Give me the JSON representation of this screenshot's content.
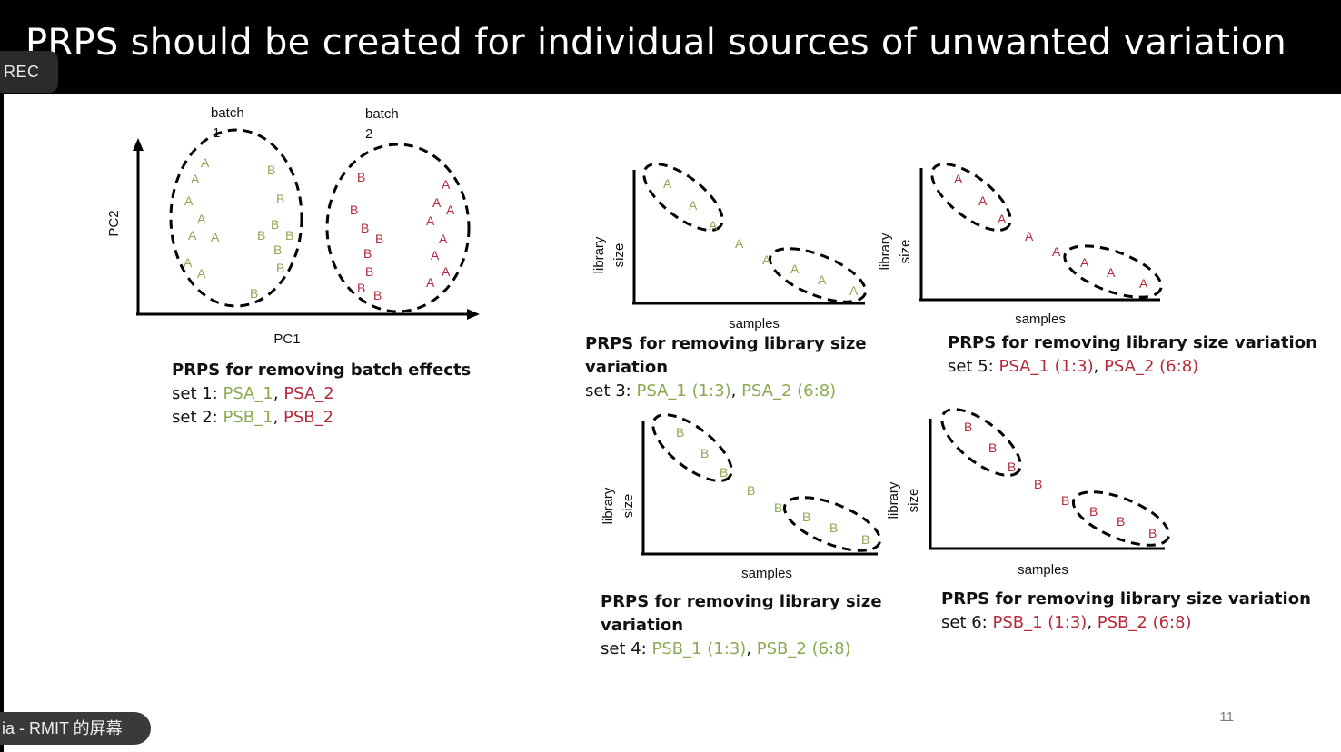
{
  "window": {
    "title": "PRPS should be created for individual sources of unwanted variation",
    "rec_label": "REC",
    "screen_share_label": "ia - RMIT 的屏幕"
  },
  "slide": {
    "page_number": "11"
  },
  "colors": {
    "green": "#8aaa52",
    "red": "#b52a3a",
    "text": "#111111"
  },
  "panel_batch": {
    "batch1_line1": "batch",
    "batch1_line2": "1",
    "batch2_line1": "batch",
    "batch2_line2": "2",
    "ylabel": "PC2",
    "xlabel": "PC1",
    "caption_head": "PRPS for removing batch effects",
    "set1_prefix": "set 1: ",
    "set1_a": "PSA_1",
    "set1_sep": ", ",
    "set1_b": "PSA_2",
    "set2_prefix": "set 2: ",
    "set2_a": "PSB_1",
    "set2_sep": ", ",
    "set2_b": "PSB_2"
  },
  "panel_set3": {
    "ylabel_1": "library",
    "ylabel_2": "size",
    "xlabel": "samples",
    "letter": "A",
    "caption_head_1": "PRPS for removing library size",
    "caption_head_2": "variation",
    "set_prefix": "set 3: ",
    "set_a": "PSA_1 (1:3)",
    "set_sep": ", ",
    "set_b": "PSA_2 (6:8)"
  },
  "panel_set5": {
    "ylabel_1": "library",
    "ylabel_2": "size",
    "xlabel": "samples",
    "letter": "A",
    "caption_head": "PRPS for removing library size variation",
    "set_prefix": "set 5: ",
    "set_a": "PSA_1 (1:3)",
    "set_sep": ", ",
    "set_b": "PSA_2 (6:8)"
  },
  "panel_set4": {
    "ylabel_1": "library",
    "ylabel_2": "size",
    "xlabel": "samples",
    "letter": "B",
    "caption_head_1": "PRPS for removing library size",
    "caption_head_2": "variation",
    "set_prefix": "set 4: ",
    "set_a": "PSB_1 (1:3)",
    "set_sep": ", ",
    "set_b": "PSB_2 (6:8)"
  },
  "panel_set6": {
    "ylabel_1": "library",
    "ylabel_2": "size",
    "xlabel": "samples",
    "letter": "B",
    "caption_head": "PRPS for removing library size variation",
    "set_prefix": "set 6: ",
    "set_a": "PSB_1 (1:3)",
    "set_sep": ", ",
    "set_b": "PSB_2 (6:8)"
  }
}
